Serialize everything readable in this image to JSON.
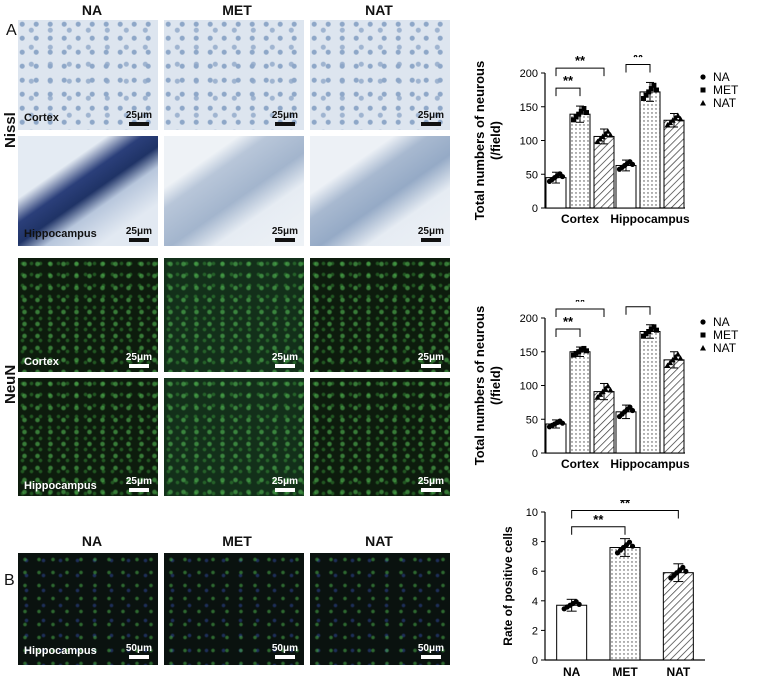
{
  "panel_letters": {
    "a": "A",
    "b": "B"
  },
  "column_headers": [
    "NA",
    "MET",
    "NAT"
  ],
  "row_labels": {
    "nissl": "Nissl",
    "neun": "NeuN"
  },
  "region_labels": {
    "cortex": "Cortex",
    "hippocampus": "Hippocampus"
  },
  "scale_bars": {
    "small": "25μm",
    "large": "50μm"
  },
  "colors": {
    "bar_fill": "#ffffff",
    "bar_stroke": "#000000",
    "sig_stroke": "#000000"
  },
  "chart_data": [
    {
      "type": "bar",
      "categories": [
        "Cortex",
        "Hippocampus"
      ],
      "series": [
        {
          "name": "NA",
          "values": [
            45,
            63
          ],
          "errors": [
            8,
            8
          ],
          "pattern": "none",
          "marker": "circle"
        },
        {
          "name": "MET",
          "values": [
            139,
            172
          ],
          "errors": [
            12,
            14
          ],
          "pattern": "dots",
          "marker": "square"
        },
        {
          "name": "NAT",
          "values": [
            106,
            130
          ],
          "errors": [
            11,
            10
          ],
          "pattern": "hatch",
          "marker": "triangle"
        }
      ],
      "ylabel": "Total  numbers of neurous\n(/field)",
      "ylim": [
        0,
        200
      ],
      "yticks": [
        0,
        50,
        100,
        150,
        200
      ],
      "legend": "right",
      "significance": [
        {
          "group": 0,
          "from": 0,
          "to": 1,
          "label": "**"
        },
        {
          "group": 0,
          "from": 0,
          "to": 2,
          "label": "**"
        },
        {
          "group": 1,
          "from": 0,
          "to": 1,
          "label": "**"
        },
        {
          "group": 1,
          "from": 0,
          "to": 2,
          "label": "**"
        }
      ]
    },
    {
      "type": "bar",
      "categories": [
        "Cortex",
        "Hippocampus"
      ],
      "series": [
        {
          "name": "NA",
          "values": [
            43,
            61
          ],
          "errors": [
            6,
            10
          ],
          "pattern": "none",
          "marker": "circle"
        },
        {
          "name": "MET",
          "values": [
            150,
            180
          ],
          "errors": [
            7,
            10
          ],
          "pattern": "dots",
          "marker": "square"
        },
        {
          "name": "NAT",
          "values": [
            91,
            138
          ],
          "errors": [
            12,
            12
          ],
          "pattern": "hatch",
          "marker": "triangle"
        }
      ],
      "ylabel": "Total  numbers of neurous\n(/field)",
      "ylim": [
        0,
        200
      ],
      "yticks": [
        0,
        50,
        100,
        150,
        200
      ],
      "legend": "right",
      "significance": [
        {
          "group": 0,
          "from": 0,
          "to": 1,
          "label": "**"
        },
        {
          "group": 0,
          "from": 0,
          "to": 2,
          "label": "**"
        },
        {
          "group": 1,
          "from": 0,
          "to": 1,
          "label": "**"
        },
        {
          "group": 1,
          "from": 0,
          "to": 2,
          "label": "**"
        }
      ]
    },
    {
      "type": "bar",
      "categories": [
        "NA",
        "MET",
        "NAT"
      ],
      "series": [
        {
          "name": "",
          "values": [
            3.7,
            7.6,
            5.9
          ],
          "errors": [
            0.4,
            0.6,
            0.6
          ],
          "patterns": [
            "none",
            "dots",
            "hatch"
          ]
        }
      ],
      "ylabel": "Rate of positive cells",
      "ylim": [
        0,
        10
      ],
      "yticks": [
        0,
        2,
        4,
        6,
        8,
        10
      ],
      "significance": [
        {
          "from": 0,
          "to": 1,
          "label": "**"
        },
        {
          "from": 0,
          "to": 2,
          "label": "**"
        }
      ]
    }
  ]
}
